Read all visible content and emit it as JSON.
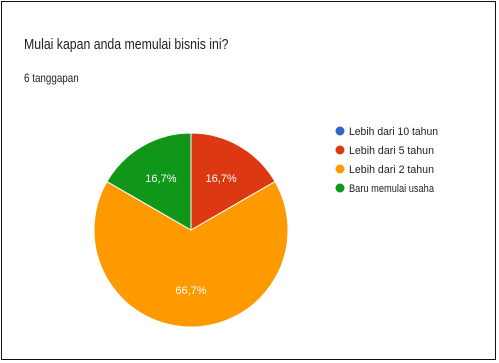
{
  "header": {
    "question": "Mulai kapan anda memulai bisnis ini?",
    "responses": "6 tanggapan"
  },
  "chart_data": {
    "type": "pie",
    "categories": [
      "Lebih dari 10 tahun",
      "Lebih dari 5 tahun",
      "Lebih dari 2 tahun",
      "Baru memulai usaha"
    ],
    "values": [
      0,
      16.7,
      66.7,
      16.7
    ],
    "value_labels": [
      "",
      "16,7%",
      "66,7%",
      "16,7%"
    ],
    "colors": [
      "#3366cc",
      "#dc3912",
      "#ff9900",
      "#109618"
    ],
    "legend_position": "right"
  }
}
